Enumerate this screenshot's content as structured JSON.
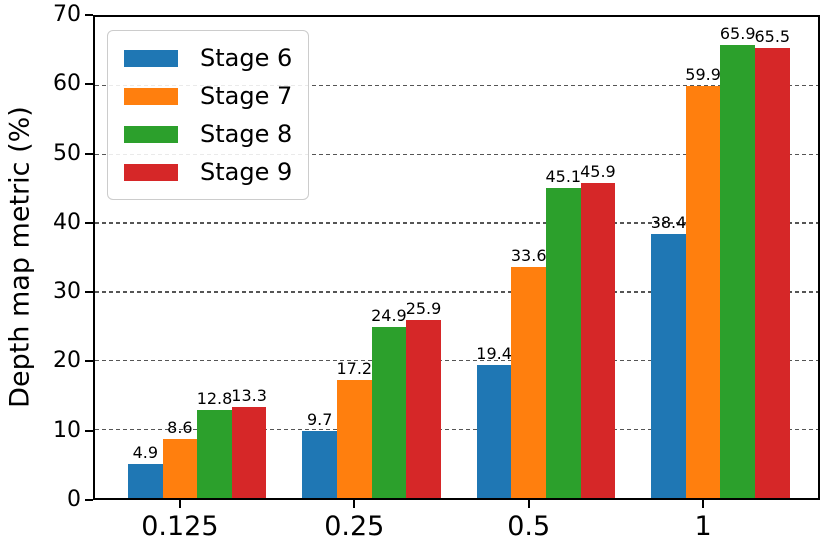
{
  "chart_data": {
    "type": "bar",
    "title": "",
    "xlabel": "",
    "ylabel": "Depth map metric (%)",
    "categories": [
      "0.125",
      "0.25",
      "0.5",
      "1"
    ],
    "series": [
      {
        "name": "Stage 6",
        "color": "#1f77b4",
        "values": [
          4.9,
          9.7,
          19.4,
          38.4
        ]
      },
      {
        "name": "Stage 7",
        "color": "#ff7f0e",
        "values": [
          8.6,
          17.2,
          33.6,
          59.9
        ]
      },
      {
        "name": "Stage 8",
        "color": "#2ca02c",
        "values": [
          12.8,
          24.9,
          45.1,
          65.9
        ]
      },
      {
        "name": "Stage 9",
        "color": "#d62728",
        "values": [
          13.3,
          25.9,
          45.9,
          65.5
        ]
      }
    ],
    "bar_value_labels": [
      [
        "4.9",
        "9.7",
        "19.4",
        "38.4"
      ],
      [
        "8.6",
        "17.2",
        "33.6",
        "59.9"
      ],
      [
        "12.8",
        "24.9",
        "45.1",
        "65.9"
      ],
      [
        "13.3",
        "25.9",
        "45.9",
        "65.5"
      ]
    ],
    "ylim": [
      0,
      70
    ],
    "yticks": [
      0,
      10,
      20,
      30,
      40,
      50,
      60,
      70
    ],
    "grid": "horizontal-dashed",
    "grid_color": "#555555",
    "legend_position": "upper left",
    "frame": true
  }
}
